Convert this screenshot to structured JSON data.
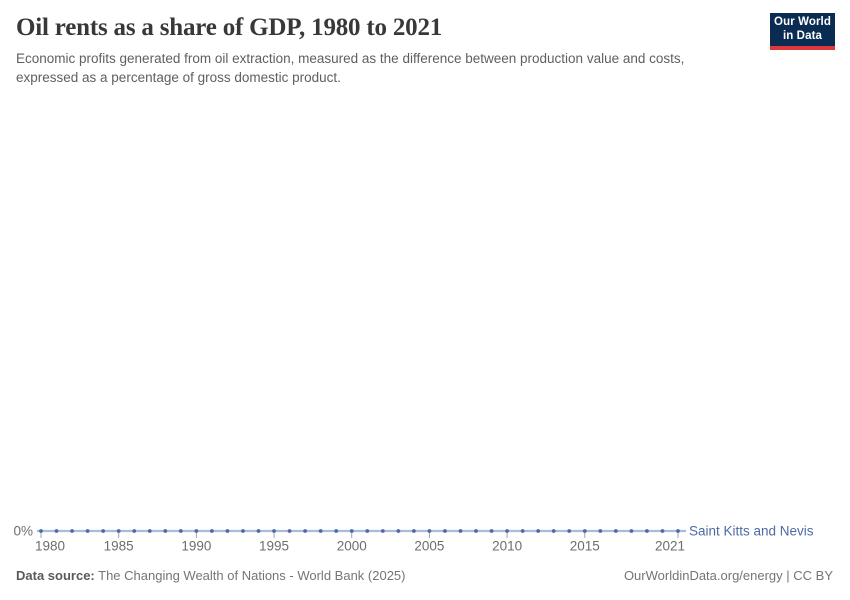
{
  "header": {
    "title": "Oil rents as a share of GDP, 1980 to 2021",
    "subtitle": "Economic profits generated from oil extraction, measured as the difference between production value and costs, expressed as a percentage of gross domestic product."
  },
  "logo": {
    "line1": "Our World",
    "line2": "in Data",
    "bg_color": "#0b2c52",
    "bar_color": "#e0373d"
  },
  "chart_data": {
    "type": "line",
    "title": "Oil rents as a share of GDP, 1980 to 2021",
    "xlabel": "",
    "ylabel": "",
    "grid": false,
    "legend_position": "end-of-line",
    "x_range": [
      1980,
      2021
    ],
    "ylim": [
      0,
      1
    ],
    "x_ticks": [
      1980,
      1985,
      1990,
      1995,
      2000,
      2005,
      2010,
      2015,
      2021
    ],
    "y_ticks": [
      {
        "value": 0,
        "label": "0%"
      }
    ],
    "x": [
      1980,
      1981,
      1982,
      1983,
      1984,
      1985,
      1986,
      1987,
      1988,
      1989,
      1990,
      1991,
      1992,
      1993,
      1994,
      1995,
      1996,
      1997,
      1998,
      1999,
      2000,
      2001,
      2002,
      2003,
      2004,
      2005,
      2006,
      2007,
      2008,
      2009,
      2010,
      2011,
      2012,
      2013,
      2014,
      2015,
      2016,
      2017,
      2018,
      2019,
      2020,
      2021
    ],
    "series": [
      {
        "name": "Saint Kitts and Nevis",
        "color": "#4c6ba6",
        "line_color": "#a7bddd",
        "values": [
          0,
          0,
          0,
          0,
          0,
          0,
          0,
          0,
          0,
          0,
          0,
          0,
          0,
          0,
          0,
          0,
          0,
          0,
          0,
          0,
          0,
          0,
          0,
          0,
          0,
          0,
          0,
          0,
          0,
          0,
          0,
          0,
          0,
          0,
          0,
          0,
          0,
          0,
          0,
          0,
          0,
          0
        ]
      }
    ]
  },
  "footer": {
    "datasource_label": "Data source:",
    "datasource_value": "The Changing Wealth of Nations - World Bank (2025)",
    "credit": "OurWorldinData.org/energy | CC BY"
  },
  "colors": {
    "title_text": "#383838",
    "subtitle_text": "#5f5f5f",
    "axis_text": "#6e6e6e",
    "tick_mark": "#a3a3a3",
    "series_accent": "#4c6ba6"
  }
}
